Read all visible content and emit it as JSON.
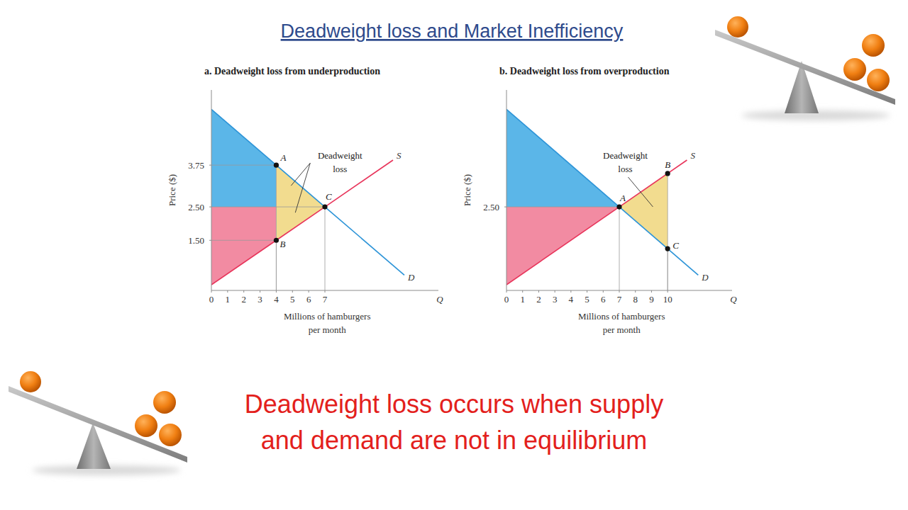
{
  "title": "Deadweight loss and Market Inefficiency",
  "caption": "Deadweight loss occurs when supply\nand demand are not in equilibrium",
  "chart_data": [
    {
      "type": "line",
      "title": "a. Deadweight loss from underproduction",
      "ylabel": "Price ($)",
      "xlabel": "Millions of hamburgers\nper month",
      "x_symbol": "Q",
      "xlim": [
        0,
        14
      ],
      "ylim": [
        0,
        6
      ],
      "xticks": [
        0,
        1,
        2,
        3,
        4,
        5,
        6,
        7
      ],
      "yticks": [
        {
          "value": 1.5,
          "label": "1.50"
        },
        {
          "value": 2.5,
          "label": "2.50"
        },
        {
          "value": 3.75,
          "label": "3.75"
        }
      ],
      "grid": false,
      "series": [
        {
          "type": "area",
          "color": "#5bb6e8",
          "x": [
            0,
            4,
            4,
            0
          ],
          "values": [
            5.42,
            3.75,
            2.5,
            2.5
          ]
        },
        {
          "type": "area",
          "color": "#f28ba2",
          "x": [
            0,
            4,
            4,
            0
          ],
          "values": [
            2.5,
            2.5,
            1.5,
            0.17
          ]
        },
        {
          "type": "area",
          "color": "#f2dc8f",
          "x": [
            4,
            7,
            4
          ],
          "values": [
            3.75,
            2.5,
            1.5
          ]
        },
        {
          "name": "S",
          "type": "line",
          "color": "#e8365c",
          "x": [
            0,
            4,
            7,
            11.2
          ],
          "values": [
            0.17,
            1.5,
            2.5,
            3.9
          ]
        },
        {
          "name": "D",
          "type": "line",
          "color": "#2f95d8",
          "x": [
            0,
            4,
            7,
            11.9
          ],
          "values": [
            5.42,
            3.75,
            2.5,
            0.46
          ]
        }
      ],
      "points": {
        "labels": [
          "A",
          "B",
          "C"
        ],
        "x": [
          4,
          4,
          7
        ],
        "values": [
          3.75,
          1.5,
          2.5
        ]
      },
      "annotations": [
        {
          "text": "Deadweight\nloss"
        }
      ]
    },
    {
      "type": "line",
      "title": "b. Deadweight loss from overproduction",
      "ylabel": "Price ($)",
      "xlabel": "Millions of hamburgers\nper month",
      "x_symbol": "Q",
      "xlim": [
        0,
        14
      ],
      "ylim": [
        0,
        6
      ],
      "xticks": [
        0,
        1,
        2,
        3,
        4,
        5,
        6,
        7,
        8,
        9,
        10
      ],
      "yticks": [
        {
          "value": 2.5,
          "label": "2.50"
        }
      ],
      "grid": false,
      "series": [
        {
          "type": "area",
          "color": "#5bb6e8",
          "x": [
            0,
            7,
            0
          ],
          "values": [
            5.42,
            2.5,
            2.5
          ]
        },
        {
          "type": "area",
          "color": "#f28ba2",
          "x": [
            0,
            7,
            0
          ],
          "values": [
            2.5,
            2.5,
            0.17
          ]
        },
        {
          "type": "area",
          "color": "#f2dc8f",
          "x": [
            7,
            10,
            10
          ],
          "values": [
            2.5,
            3.5,
            1.25
          ]
        },
        {
          "name": "S",
          "type": "line",
          "color": "#e8365c",
          "x": [
            0,
            7,
            10,
            11.2
          ],
          "values": [
            0.17,
            2.5,
            3.5,
            3.9
          ]
        },
        {
          "name": "D",
          "type": "line",
          "color": "#2f95d8",
          "x": [
            0,
            7,
            10,
            11.9
          ],
          "values": [
            5.42,
            2.5,
            1.25,
            0.46
          ]
        }
      ],
      "points": {
        "labels": [
          "A",
          "B",
          "C"
        ],
        "x": [
          7,
          10,
          10
        ],
        "values": [
          2.5,
          3.5,
          1.25
        ]
      },
      "annotations": [
        {
          "text": "Deadweight\nloss"
        }
      ]
    }
  ]
}
